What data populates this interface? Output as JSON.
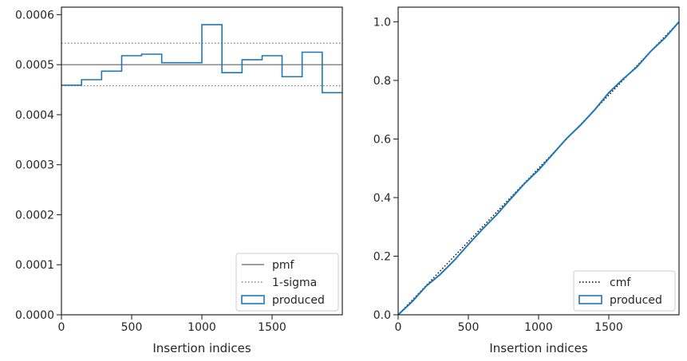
{
  "chart_data": [
    {
      "type": "line",
      "subtype": "step-histogram",
      "xlabel": "Insertion indices",
      "ylabel": "",
      "xlim": [
        0,
        2000
      ],
      "ylim": [
        0,
        0.000615
      ],
      "xticks": [
        0,
        500,
        1000,
        1500
      ],
      "xtick_labels": [
        "0",
        "500",
        "1000",
        "1500"
      ],
      "yticks": [
        0,
        0.0001,
        0.0002,
        0.0003,
        0.0004,
        0.0005,
        0.0006
      ],
      "ytick_labels": [
        "0.0000",
        "0.0001",
        "0.0002",
        "0.0003",
        "0.0004",
        "0.0005",
        "0.0006"
      ],
      "grid": false,
      "legend_position": "lower-right",
      "hlines": [
        {
          "name": "pmf",
          "y": 0.0005,
          "style": "solid",
          "color": "#7f7f7f"
        },
        {
          "name": "1-sigma",
          "y": 0.000543,
          "style": "dotted",
          "color": "#7f7f7f"
        },
        {
          "name": "1-sigma",
          "y": 0.000458,
          "style": "dotted",
          "color": "#7f7f7f"
        }
      ],
      "series": [
        {
          "name": "produced",
          "color": "#1f77b4",
          "bin_edges": [
            0,
            143,
            286,
            429,
            571,
            714,
            857,
            1000,
            1143,
            1286,
            1429,
            1571,
            1714,
            1857,
            2000
          ],
          "values": [
            0.000459,
            0.00047,
            0.000487,
            0.000518,
            0.000521,
            0.000504,
            0.000504,
            0.00058,
            0.000484,
            0.00051,
            0.000518,
            0.000476,
            0.000525,
            0.000444
          ]
        }
      ],
      "legend": [
        {
          "label": "pmf",
          "kind": "solid-line"
        },
        {
          "label": "1-sigma",
          "kind": "dotted-line"
        },
        {
          "label": "produced",
          "kind": "patch"
        }
      ]
    },
    {
      "type": "line",
      "xlabel": "Insertion indices",
      "ylabel": "",
      "xlim": [
        0,
        2000
      ],
      "ylim": [
        0,
        1.05
      ],
      "xticks": [
        0,
        500,
        1000,
        1500
      ],
      "xtick_labels": [
        "0",
        "500",
        "1000",
        "1500"
      ],
      "yticks": [
        0,
        0.2,
        0.4,
        0.6,
        0.8,
        1.0
      ],
      "ytick_labels": [
        "0.0",
        "0.2",
        "0.4",
        "0.6",
        "0.8",
        "1.0"
      ],
      "grid": false,
      "legend_position": "lower-right",
      "series": [
        {
          "name": "cmf",
          "style": "dotted",
          "color": "#000000",
          "x": [
            0,
            2000
          ],
          "y": [
            0,
            1.0
          ]
        },
        {
          "name": "produced",
          "style": "solid",
          "color": "#1f77b4",
          "x": [
            0,
            100,
            200,
            300,
            400,
            500,
            600,
            700,
            800,
            900,
            1000,
            1100,
            1200,
            1300,
            1400,
            1500,
            1600,
            1700,
            1800,
            1900,
            2000
          ],
          "y": [
            0.0,
            0.045,
            0.098,
            0.138,
            0.186,
            0.24,
            0.292,
            0.341,
            0.395,
            0.448,
            0.494,
            0.548,
            0.602,
            0.648,
            0.7,
            0.758,
            0.804,
            0.846,
            0.9,
            0.945,
            1.0
          ]
        }
      ],
      "legend": [
        {
          "label": "cmf",
          "kind": "dotted-line"
        },
        {
          "label": "produced",
          "kind": "patch"
        }
      ]
    }
  ]
}
